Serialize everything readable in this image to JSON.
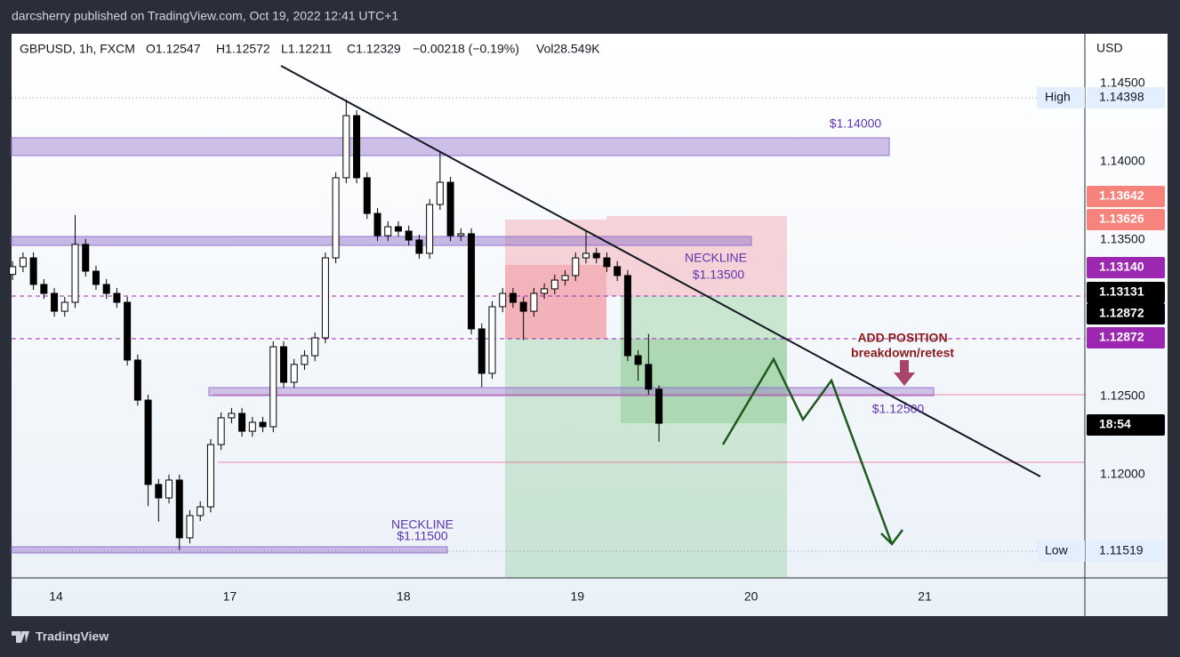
{
  "chart_data": {
    "type": "candlestick",
    "publisher": "darcsherry published on TradingView.com, Oct 19, 2022 12:41 UTC+1",
    "symbol": "GBPUSD, 1h, FXCM",
    "ohlc_header": [
      "O1.12547",
      "H1.12572",
      "L1.12211",
      "C1.12329",
      "−0.00218 (−0.19%)",
      "Vol28.549K"
    ],
    "currency": "USD",
    "brand": "TradingView",
    "x": [
      -0.25,
      -0.19,
      -0.13,
      -0.07,
      -0.01,
      0.05,
      0.11,
      0.17,
      0.23,
      0.29,
      0.35,
      0.41,
      0.47,
      0.53,
      0.59,
      0.65,
      0.71,
      0.77,
      0.83,
      0.89,
      0.95,
      1.01,
      1.07,
      1.13,
      1.19,
      1.25,
      1.31,
      1.37,
      1.43,
      1.49,
      1.55,
      1.61,
      1.67,
      1.73,
      1.79,
      1.85,
      1.91,
      1.97,
      2.03,
      2.09,
      2.15,
      2.21,
      2.27,
      2.33,
      2.39,
      2.45,
      2.51,
      2.57,
      2.63,
      2.69,
      2.75,
      2.81,
      2.87,
      2.93,
      2.99,
      3.05,
      3.11,
      3.17,
      3.23,
      3.29,
      3.35,
      3.41,
      3.47
    ],
    "open": [
      1.1328,
      1.1333,
      1.13386,
      1.13216,
      1.13159,
      1.13045,
      1.13102,
      1.13472,
      1.13301,
      1.13216,
      1.13159,
      1.13102,
      1.12733,
      1.12477,
      1.11938,
      1.11852,
      1.11966,
      1.11597,
      1.11739,
      1.11795,
      1.12193,
      1.12364,
      1.12392,
      1.12278,
      1.12335,
      1.12307,
      1.12818,
      1.12591,
      1.12705,
      1.12761,
      1.12875,
      1.13386,
      1.13898,
      1.14295,
      1.13898,
      1.1367,
      1.13528,
      1.13585,
      1.13557,
      1.135,
      1.13415,
      1.13727,
      1.13869,
      1.13528,
      1.1354,
      1.12932,
      1.12648,
      1.13074,
      1.13159,
      1.13102,
      1.13045,
      1.13159,
      1.13188,
      1.13244,
      1.13273,
      1.13386,
      1.13415,
      1.13386,
      1.1333,
      1.13273,
      1.12761,
      1.12705,
      1.12547
    ],
    "high": [
      1.13365,
      1.13421,
      1.13421,
      1.13251,
      1.13194,
      1.13137,
      1.1366,
      1.13507,
      1.13336,
      1.13251,
      1.13194,
      1.13137,
      1.12768,
      1.12512,
      1.11973,
      1.12001,
      1.12001,
      1.11774,
      1.1183,
      1.12228,
      1.12399,
      1.12427,
      1.12427,
      1.1237,
      1.1237,
      1.12853,
      1.12853,
      1.1274,
      1.12796,
      1.1291,
      1.13421,
      1.13933,
      1.14398,
      1.1433,
      1.13933,
      1.13705,
      1.1362,
      1.1362,
      1.13592,
      1.13535,
      1.13762,
      1.1406,
      1.13904,
      1.13575,
      1.13575,
      1.12967,
      1.13109,
      1.13194,
      1.13194,
      1.13137,
      1.13194,
      1.13223,
      1.13279,
      1.13308,
      1.13421,
      1.1356,
      1.1345,
      1.13421,
      1.13365,
      1.13308,
      1.12796,
      1.129,
      1.12572
    ],
    "low": [
      1.13245,
      1.13295,
      1.13181,
      1.13124,
      1.1301,
      1.1301,
      1.13067,
      1.13266,
      1.13181,
      1.13124,
      1.13067,
      1.12698,
      1.12442,
      1.118,
      1.117,
      1.11817,
      1.11519,
      1.11562,
      1.11704,
      1.1176,
      1.12158,
      1.12329,
      1.12243,
      1.12243,
      1.12272,
      1.12272,
      1.12556,
      1.12556,
      1.1267,
      1.12726,
      1.1284,
      1.13351,
      1.13863,
      1.13863,
      1.13635,
      1.13493,
      1.13493,
      1.13522,
      1.13465,
      1.1338,
      1.1338,
      1.13692,
      1.13493,
      1.13493,
      1.12897,
      1.1256,
      1.12613,
      1.13039,
      1.13067,
      1.1286,
      1.1301,
      1.13124,
      1.13153,
      1.13209,
      1.13238,
      1.13351,
      1.13351,
      1.13295,
      1.13238,
      1.12726,
      1.126,
      1.12512,
      1.12211
    ],
    "close": [
      1.1333,
      1.13386,
      1.13216,
      1.13159,
      1.13045,
      1.13102,
      1.13472,
      1.13301,
      1.13216,
      1.13159,
      1.13102,
      1.12733,
      1.12477,
      1.11938,
      1.11852,
      1.11966,
      1.11597,
      1.11739,
      1.11795,
      1.12193,
      1.12364,
      1.12392,
      1.12278,
      1.12335,
      1.12307,
      1.12818,
      1.12591,
      1.12705,
      1.12761,
      1.12875,
      1.13386,
      1.13898,
      1.14295,
      1.13898,
      1.1367,
      1.13528,
      1.13585,
      1.13557,
      1.135,
      1.13415,
      1.13727,
      1.13869,
      1.13528,
      1.1354,
      1.12932,
      1.12648,
      1.13074,
      1.13159,
      1.13102,
      1.13045,
      1.13159,
      1.13188,
      1.13244,
      1.13273,
      1.13386,
      1.13415,
      1.13386,
      1.1333,
      1.13273,
      1.12761,
      1.12705,
      1.12547,
      1.12329
    ],
    "up_color": "#ffffff",
    "down_color": "#000000",
    "wick_color": "#000000",
    "xlim": [
      -0.256,
      5.921
    ],
    "xticks": [
      {
        "value": 0,
        "label": "14"
      },
      {
        "value": 1,
        "label": "17"
      },
      {
        "value": 2,
        "label": "18"
      },
      {
        "value": 3,
        "label": "19"
      },
      {
        "value": 4,
        "label": "20"
      },
      {
        "value": 5,
        "label": "21"
      }
    ],
    "ylim": [
      1.11341,
      1.14818
    ],
    "yticks": [
      {
        "value": 1.145,
        "label": "1.14500"
      },
      {
        "value": 1.14,
        "label": "1.14000"
      },
      {
        "value": 1.135,
        "label": "1.13500"
      },
      {
        "value": 1.125,
        "label": "1.12500"
      },
      {
        "value": 1.12,
        "label": "1.12000"
      }
    ],
    "grid": false,
    "price_badges": [
      {
        "tag": "High",
        "text": "1.14398",
        "color": "#e3effd",
        "text_color": "#131722"
      },
      {
        "text": "1.13642",
        "color": "#f7847c",
        "text_color": "#ffffff"
      },
      {
        "text": "1.13626",
        "color": "#f7847c",
        "text_color": "#ffffff"
      },
      {
        "text": "1.13140",
        "color": "#9c27b0",
        "text_color": "#ffffff"
      },
      {
        "text": "1.13131",
        "color": "#000000",
        "text_color": "#ffffff"
      },
      {
        "text": "1.12872",
        "color": "#000000",
        "text_color": "#ffffff"
      },
      {
        "text": "1.12872",
        "color": "#9c27b0",
        "text_color": "#ffffff"
      },
      {
        "text": "18:54",
        "color": "#000000",
        "text_color": "#ffffff"
      },
      {
        "tag": "Low",
        "text": "1.11519",
        "color": "#e3effd",
        "text_color": "#131722"
      }
    ],
    "annotations": [
      "$1.14000",
      "NECKLINE",
      "$1.13500",
      "ADD POSITION",
      "breakdown/retest",
      "$1.12500",
      "NECKLINE",
      "$1.11500"
    ]
  }
}
